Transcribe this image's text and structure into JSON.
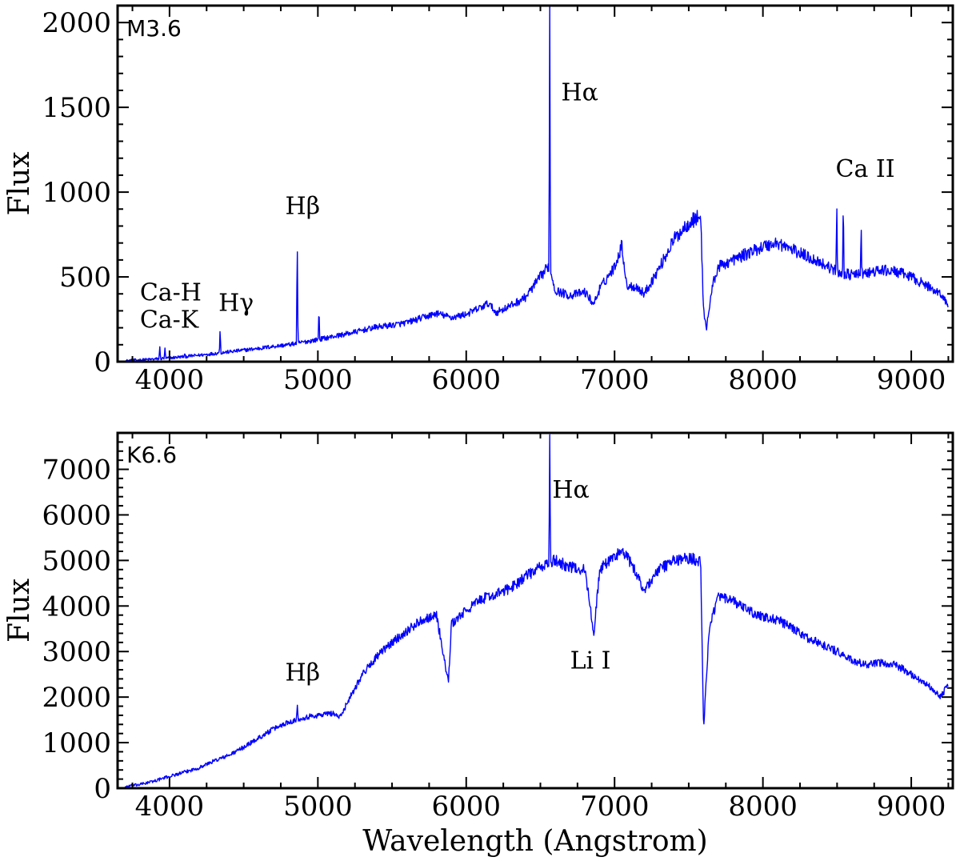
{
  "chart_data": [
    {
      "type": "line",
      "label": "M3.6",
      "xlabel": "",
      "ylabel": "Flux",
      "xlim": [
        3650,
        9280
      ],
      "ylim": [
        0,
        2100
      ],
      "xticks": [
        4000,
        5000,
        6000,
        7000,
        8000,
        9000
      ],
      "yticks": [
        0,
        500,
        1000,
        1500,
        2000
      ],
      "xtick_labels": [
        "4000",
        "5000",
        "6000",
        "7000",
        "8000",
        "9000"
      ],
      "ytick_labels": [
        "0",
        "500",
        "1000",
        "1500",
        "2000"
      ],
      "color": "#0000ff",
      "continuum": [
        [
          3700,
          5
        ],
        [
          3800,
          10
        ],
        [
          3900,
          15
        ],
        [
          4000,
          22
        ],
        [
          4100,
          30
        ],
        [
          4200,
          38
        ],
        [
          4300,
          48
        ],
        [
          4400,
          58
        ],
        [
          4500,
          68
        ],
        [
          4600,
          78
        ],
        [
          4700,
          90
        ],
        [
          4800,
          100
        ],
        [
          4900,
          115
        ],
        [
          5000,
          130
        ],
        [
          5100,
          148
        ],
        [
          5200,
          165
        ],
        [
          5300,
          185
        ],
        [
          5400,
          205
        ],
        [
          5500,
          215
        ],
        [
          5600,
          230
        ],
        [
          5700,
          258
        ],
        [
          5800,
          285
        ],
        [
          5900,
          260
        ],
        [
          6000,
          280
        ],
        [
          6100,
          320
        ],
        [
          6150,
          345
        ],
        [
          6200,
          290
        ],
        [
          6300,
          330
        ],
        [
          6400,
          380
        ],
        [
          6500,
          500
        ],
        [
          6560,
          570
        ],
        [
          6600,
          420
        ],
        [
          6700,
          390
        ],
        [
          6800,
          410
        ],
        [
          6860,
          340
        ],
        [
          6900,
          430
        ],
        [
          7000,
          560
        ],
        [
          7050,
          690
        ],
        [
          7080,
          450
        ],
        [
          7150,
          440
        ],
        [
          7200,
          400
        ],
        [
          7300,
          550
        ],
        [
          7400,
          720
        ],
        [
          7500,
          820
        ],
        [
          7580,
          860
        ],
        [
          7600,
          300
        ],
        [
          7620,
          200
        ],
        [
          7660,
          450
        ],
        [
          7700,
          560
        ],
        [
          7800,
          600
        ],
        [
          7900,
          640
        ],
        [
          8000,
          680
        ],
        [
          8100,
          700
        ],
        [
          8200,
          660
        ],
        [
          8300,
          620
        ],
        [
          8400,
          580
        ],
        [
          8500,
          530
        ],
        [
          8600,
          510
        ],
        [
          8700,
          520
        ],
        [
          8800,
          540
        ],
        [
          8900,
          530
        ],
        [
          9000,
          500
        ],
        [
          9100,
          450
        ],
        [
          9200,
          400
        ],
        [
          9250,
          330
        ]
      ],
      "emission_lines": [
        {
          "x": 3934,
          "height": 90
        },
        {
          "x": 3969,
          "height": 80
        },
        {
          "x": 4102,
          "height": 40
        },
        {
          "x": 4341,
          "height": 200
        },
        {
          "x": 4861,
          "height": 760
        },
        {
          "x": 5007,
          "height": 330
        },
        {
          "x": 6563,
          "height": 2100
        },
        {
          "x": 8498,
          "height": 910
        },
        {
          "x": 8542,
          "height": 960
        },
        {
          "x": 8662,
          "height": 830
        }
      ],
      "annotations": [
        {
          "text": "M3.6",
          "x": 3710,
          "y": 1920,
          "style": "sans"
        },
        {
          "text": "Hα",
          "x": 6640,
          "y": 1540
        },
        {
          "text": "Ca II",
          "x": 8490,
          "y": 1090
        },
        {
          "text": "Hβ",
          "x": 4780,
          "y": 870
        },
        {
          "text": "Ca-H",
          "x": 3800,
          "y": 360
        },
        {
          "text": "Ca-K",
          "x": 3800,
          "y": 200
        },
        {
          "text": "Hγ",
          "x": 4330,
          "y": 300
        }
      ]
    },
    {
      "type": "line",
      "label": "K6.6",
      "xlabel": "Wavelength (Angstrom)",
      "ylabel": "Flux",
      "xlim": [
        3650,
        9280
      ],
      "ylim": [
        0,
        7800
      ],
      "xticks": [
        4000,
        5000,
        6000,
        7000,
        8000,
        9000
      ],
      "yticks": [
        0,
        1000,
        2000,
        3000,
        4000,
        5000,
        6000,
        7000
      ],
      "xtick_labels": [
        "4000",
        "5000",
        "6000",
        "7000",
        "8000",
        "9000"
      ],
      "ytick_labels": [
        "0",
        "1000",
        "2000",
        "3000",
        "4000",
        "5000",
        "6000",
        "7000"
      ],
      "color": "#0000ff",
      "continuum": [
        [
          3700,
          30
        ],
        [
          3800,
          80
        ],
        [
          3900,
          160
        ],
        [
          4000,
          260
        ],
        [
          4100,
          350
        ],
        [
          4200,
          450
        ],
        [
          4300,
          600
        ],
        [
          4400,
          720
        ],
        [
          4500,
          900
        ],
        [
          4600,
          1100
        ],
        [
          4700,
          1300
        ],
        [
          4800,
          1450
        ],
        [
          4900,
          1550
        ],
        [
          5000,
          1600
        ],
        [
          5100,
          1650
        ],
        [
          5150,
          1550
        ],
        [
          5200,
          1900
        ],
        [
          5300,
          2500
        ],
        [
          5400,
          2900
        ],
        [
          5500,
          3200
        ],
        [
          5600,
          3450
        ],
        [
          5700,
          3700
        ],
        [
          5800,
          3800
        ],
        [
          5880,
          2300
        ],
        [
          5900,
          3600
        ],
        [
          6000,
          3900
        ],
        [
          6100,
          4150
        ],
        [
          6200,
          4250
        ],
        [
          6300,
          4400
        ],
        [
          6400,
          4650
        ],
        [
          6500,
          4850
        ],
        [
          6600,
          5000
        ],
        [
          6700,
          4850
        ],
        [
          6800,
          4800
        ],
        [
          6860,
          3400
        ],
        [
          6900,
          4800
        ],
        [
          7000,
          5100
        ],
        [
          7050,
          5200
        ],
        [
          7100,
          5000
        ],
        [
          7200,
          4350
        ],
        [
          7300,
          4800
        ],
        [
          7400,
          5000
        ],
        [
          7500,
          5050
        ],
        [
          7580,
          5000
        ],
        [
          7600,
          1300
        ],
        [
          7640,
          3600
        ],
        [
          7700,
          4200
        ],
        [
          7800,
          4100
        ],
        [
          7900,
          3900
        ],
        [
          8000,
          3750
        ],
        [
          8100,
          3700
        ],
        [
          8200,
          3500
        ],
        [
          8300,
          3300
        ],
        [
          8400,
          3150
        ],
        [
          8500,
          3000
        ],
        [
          8600,
          2800
        ],
        [
          8700,
          2700
        ],
        [
          8800,
          2750
        ],
        [
          8900,
          2700
        ],
        [
          9000,
          2500
        ],
        [
          9100,
          2300
        ],
        [
          9200,
          2000
        ],
        [
          9250,
          2300
        ]
      ],
      "emission_lines": [
        {
          "x": 4861,
          "height": 1850
        },
        {
          "x": 6563,
          "height": 7800
        }
      ],
      "annotations": [
        {
          "text": "K6.6",
          "x": 3710,
          "y": 7150,
          "style": "sans"
        },
        {
          "text": "Hα",
          "x": 6580,
          "y": 6380
        },
        {
          "text": "Hβ",
          "x": 4780,
          "y": 2360
        },
        {
          "text": "Li I",
          "x": 6700,
          "y": 2630
        }
      ]
    }
  ]
}
